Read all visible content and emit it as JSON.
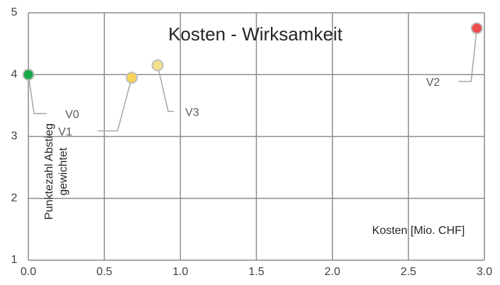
{
  "chart_data": {
    "type": "scatter",
    "title": "Kosten - Wirksamkeit",
    "xlabel": "Kosten  [Mio. CHF]",
    "ylabel": [
      "Punktezahl Abstieg",
      "gewichtet"
    ],
    "points": [
      {
        "name": "V0",
        "color": "#1aa84b",
        "x": 0.0,
        "y": 4.0
      },
      {
        "name": "V1",
        "color": "#f5d25a",
        "x": 0.68,
        "y": 3.95
      },
      {
        "name": "V3",
        "color": "#f3df8e",
        "x": 0.85,
        "y": 4.15
      },
      {
        "name": "V2",
        "color": "#f04b4b",
        "x": 2.95,
        "y": 4.75
      }
    ],
    "xlim": [
      0,
      3
    ],
    "ylim": [
      1,
      5
    ],
    "xticks": [
      {
        "value": 0,
        "label": "0.0"
      },
      0.5,
      {
        "value": 1,
        "label": "1.0"
      },
      1.5,
      {
        "value": 2,
        "label": "2.0"
      },
      2.5,
      {
        "value": 3,
        "label": "3.0"
      }
    ],
    "yticks": [
      1,
      2,
      3,
      4,
      5
    ],
    "grid": true
  }
}
